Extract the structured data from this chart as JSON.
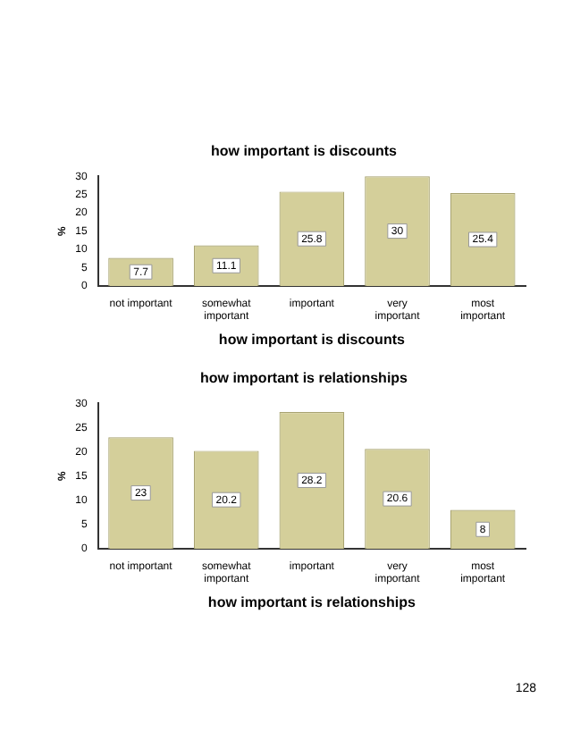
{
  "chart_data": [
    {
      "type": "bar",
      "title": "how important is discounts",
      "xlabel": "how important is discounts",
      "ylabel": "%",
      "categories": [
        "not important",
        "somewhat important",
        "important",
        "very important",
        "most important"
      ],
      "values": [
        7.7,
        11.1,
        25.8,
        30,
        25.4
      ],
      "color": "#d4cf9a",
      "ylim": [
        0,
        30
      ],
      "yticks": [
        0,
        5,
        10,
        15,
        20,
        25,
        30
      ],
      "data_labels": true,
      "grid": false,
      "legend": false
    },
    {
      "type": "bar",
      "title": "how important is relationships",
      "xlabel": "how important is relationships",
      "ylabel": "%",
      "categories": [
        "not important",
        "somewhat important",
        "important",
        "very important",
        "most important"
      ],
      "values": [
        23,
        20.2,
        28.2,
        20.6,
        8
      ],
      "color": "#d4cf9a",
      "ylim": [
        0,
        30
      ],
      "yticks": [
        0,
        5,
        10,
        15,
        20,
        25,
        30
      ],
      "data_labels": true,
      "grid": false,
      "legend": false,
      "annotations": [
        "128"
      ]
    }
  ]
}
